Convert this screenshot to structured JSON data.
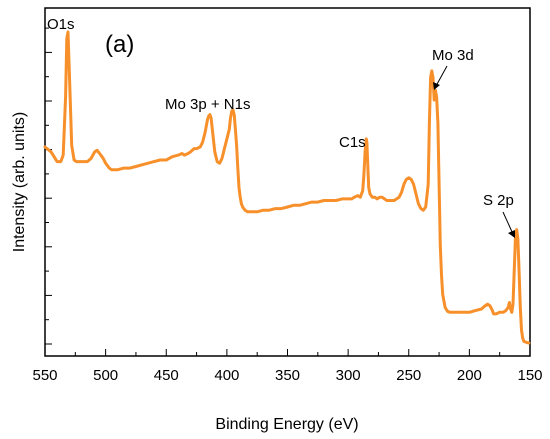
{
  "chart_data": {
    "type": "line",
    "title": "",
    "panel_label": "(a)",
    "xlabel": "Binding Energy (eV)",
    "ylabel": "Intensity (arb. units)",
    "xlim": [
      550,
      150
    ],
    "x_reversed": true,
    "y_ticks_labeled": false,
    "grid": false,
    "legend": "none",
    "line_color": "#F7902A",
    "x_ticks": [
      "550",
      "500",
      "450",
      "400",
      "350",
      "300",
      "250",
      "200",
      "150"
    ],
    "annotations": [
      {
        "text": "O1s",
        "x": 535
      },
      {
        "text": "Mo 3p + N1s",
        "x": 404
      },
      {
        "text": "C1s",
        "x": 285
      },
      {
        "text": "Mo 3d",
        "x": 229
      },
      {
        "text": "S 2p",
        "x": 162
      }
    ],
    "series": [
      {
        "x": [
          550,
          545,
          540,
          537,
          535,
          533,
          532,
          531,
          530,
          528,
          526,
          524,
          520,
          515,
          512,
          509,
          507,
          505,
          502,
          500,
          497,
          495,
          490,
          485,
          480,
          475,
          470,
          465,
          460,
          455,
          450,
          445,
          440,
          437,
          435,
          432,
          430,
          427,
          425,
          422,
          420,
          418,
          416,
          415,
          414,
          413,
          412,
          410,
          408,
          406,
          404,
          402,
          400,
          398,
          397,
          396,
          395,
          394,
          393,
          392,
          391,
          390,
          389,
          388,
          387,
          386,
          385,
          383,
          380,
          375,
          370,
          365,
          360,
          355,
          350,
          345,
          340,
          335,
          330,
          325,
          320,
          315,
          310,
          305,
          300,
          297,
          295,
          292,
          290,
          288,
          287,
          286,
          285,
          284.5,
          284,
          283,
          282,
          281,
          280,
          278,
          276,
          274,
          272,
          270,
          268,
          265,
          262,
          260,
          258,
          256,
          254,
          252,
          250,
          248,
          246,
          244,
          242,
          240,
          238,
          236,
          234,
          233,
          232,
          231,
          230,
          229,
          228,
          227,
          226,
          225,
          224,
          223,
          222,
          220,
          218,
          216,
          214,
          212,
          210,
          205,
          200,
          195,
          190,
          187,
          185,
          183,
          181,
          180,
          178,
          175,
          172,
          170,
          168,
          167,
          166,
          165,
          164,
          163,
          162,
          161,
          160,
          159,
          158,
          157,
          156,
          155,
          153,
          151
        ],
        "y": [
          0.645,
          0.63,
          0.6,
          0.6,
          0.62,
          0.8,
          0.98,
          1.0,
          0.88,
          0.65,
          0.605,
          0.6,
          0.6,
          0.6,
          0.61,
          0.63,
          0.635,
          0.625,
          0.61,
          0.595,
          0.58,
          0.575,
          0.575,
          0.58,
          0.58,
          0.585,
          0.59,
          0.595,
          0.6,
          0.605,
          0.605,
          0.615,
          0.62,
          0.625,
          0.62,
          0.625,
          0.63,
          0.64,
          0.64,
          0.645,
          0.66,
          0.69,
          0.73,
          0.74,
          0.745,
          0.735,
          0.7,
          0.63,
          0.6,
          0.595,
          0.61,
          0.64,
          0.67,
          0.7,
          0.735,
          0.755,
          0.76,
          0.745,
          0.7,
          0.65,
          0.58,
          0.52,
          0.49,
          0.47,
          0.46,
          0.455,
          0.45,
          0.445,
          0.445,
          0.445,
          0.45,
          0.45,
          0.455,
          0.455,
          0.46,
          0.465,
          0.465,
          0.47,
          0.475,
          0.475,
          0.48,
          0.48,
          0.48,
          0.485,
          0.485,
          0.485,
          0.49,
          0.495,
          0.49,
          0.51,
          0.56,
          0.63,
          0.67,
          0.66,
          0.61,
          0.52,
          0.5,
          0.495,
          0.49,
          0.49,
          0.485,
          0.49,
          0.49,
          0.485,
          0.48,
          0.48,
          0.48,
          0.485,
          0.49,
          0.505,
          0.53,
          0.545,
          0.55,
          0.545,
          0.53,
          0.5,
          0.47,
          0.455,
          0.45,
          0.46,
          0.53,
          0.72,
          0.86,
          0.88,
          0.86,
          0.79,
          0.82,
          0.8,
          0.72,
          0.53,
          0.34,
          0.25,
          0.19,
          0.15,
          0.138,
          0.135,
          0.135,
          0.135,
          0.135,
          0.135,
          0.135,
          0.14,
          0.145,
          0.155,
          0.16,
          0.155,
          0.14,
          0.13,
          0.13,
          0.135,
          0.135,
          0.14,
          0.15,
          0.165,
          0.145,
          0.135,
          0.16,
          0.26,
          0.37,
          0.39,
          0.36,
          0.26,
          0.15,
          0.08,
          0.055,
          0.045,
          0.042,
          0.04
        ]
      }
    ]
  }
}
